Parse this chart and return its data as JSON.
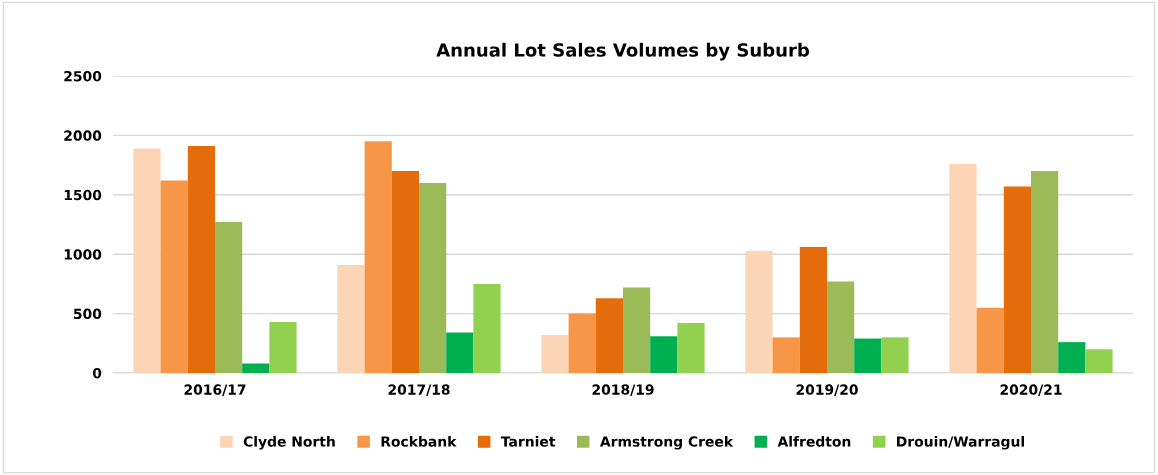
{
  "chart_data": {
    "type": "bar",
    "title": "Annual Lot Sales Volumes by Suburb",
    "categories": [
      "2016/17",
      "2017/18",
      "2018/19",
      "2019/20",
      "2020/21"
    ],
    "series": [
      {
        "name": "Clyde North",
        "color": "#fbd5b5",
        "values": [
          1890,
          910,
          320,
          1030,
          1760
        ]
      },
      {
        "name": "Rockbank",
        "color": "#f79646",
        "values": [
          1620,
          1950,
          500,
          300,
          550
        ]
      },
      {
        "name": "Tarniet",
        "color": "#e46c0a",
        "values": [
          1910,
          1700,
          630,
          1060,
          1570
        ]
      },
      {
        "name": "Armstrong Creek",
        "color": "#9bbb59",
        "values": [
          1270,
          1600,
          720,
          770,
          1700
        ]
      },
      {
        "name": "Alfredton",
        "color": "#00b050",
        "values": [
          80,
          340,
          310,
          290,
          260
        ]
      },
      {
        "name": "Drouin/Warragul",
        "color": "#92d050",
        "values": [
          430,
          750,
          420,
          300,
          200
        ]
      }
    ],
    "ylim": [
      0,
      2500
    ],
    "yticks": [
      0,
      500,
      1000,
      1500,
      2000,
      2500
    ],
    "grid": "y",
    "legend": "bottom"
  }
}
